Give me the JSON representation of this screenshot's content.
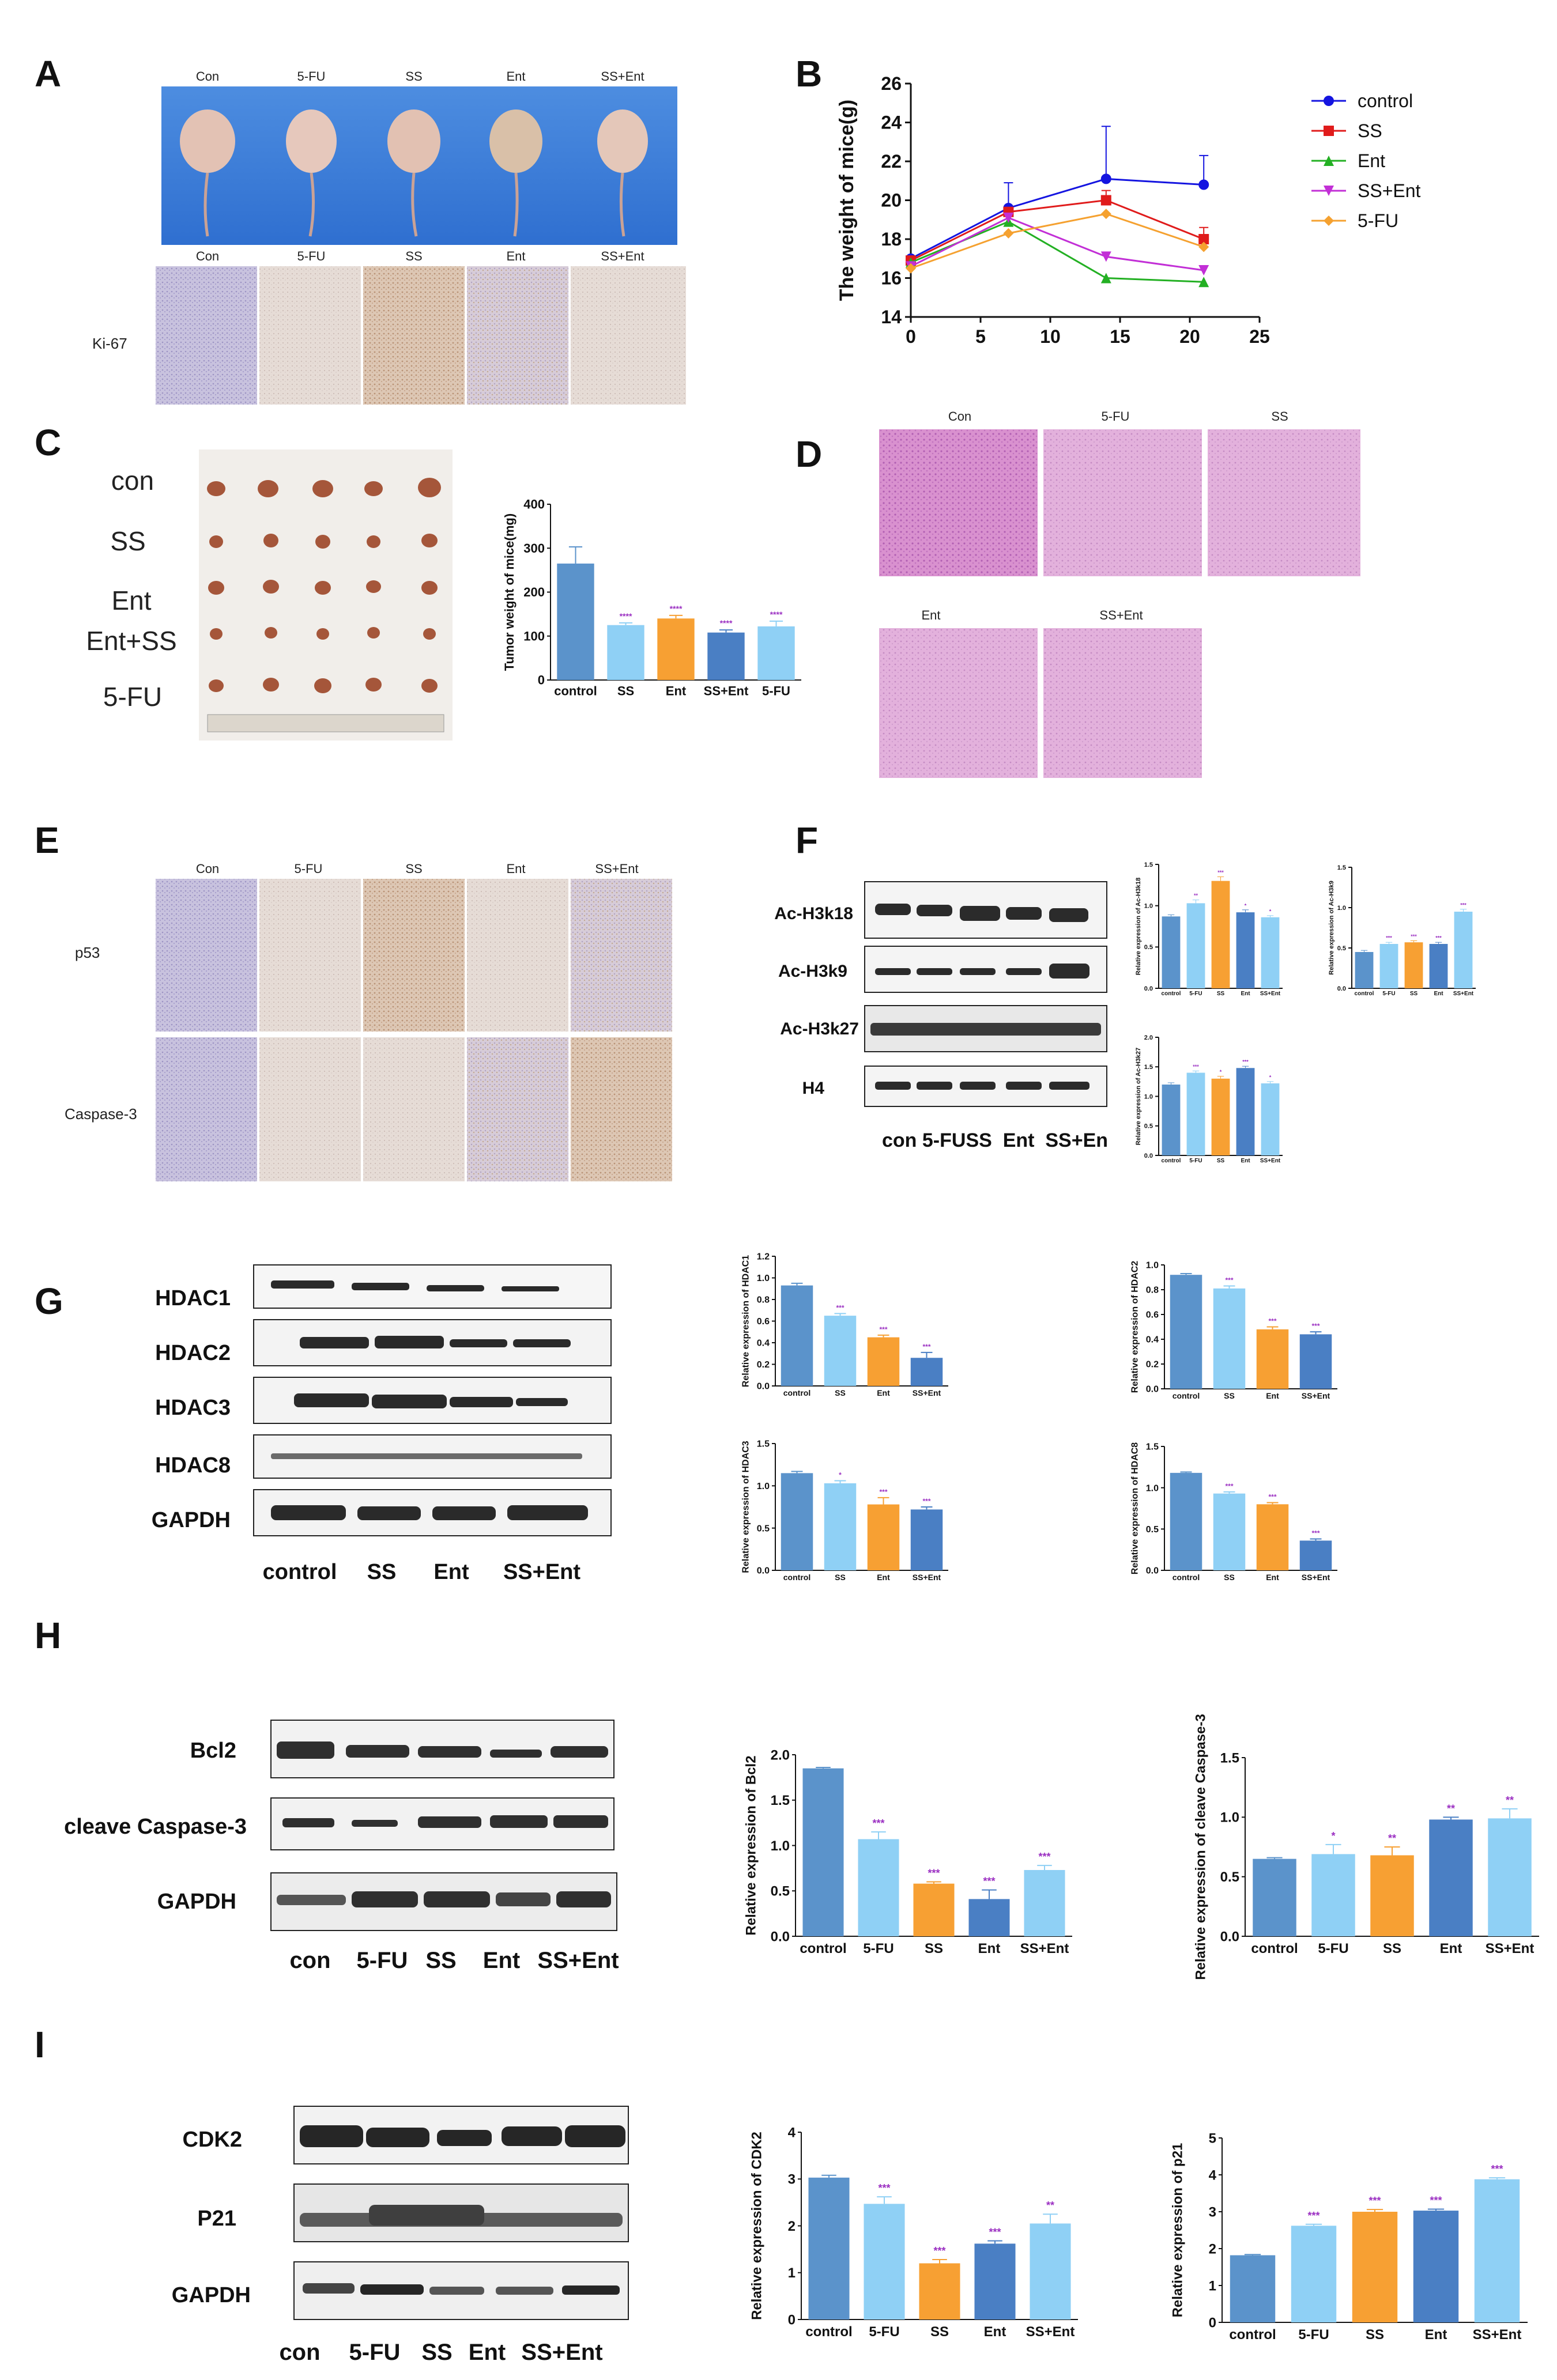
{
  "colors": {
    "control": "#5b93cb",
    "ss": "#8fd0f5",
    "ent": "#f7a033",
    "ssent": "#4a7fc4",
    "sig": "#9b30c2",
    "lineControl": "#1414e0",
    "lineSS": "#e01b1b",
    "lineEnt": "#23b023",
    "lineSSEnt": "#c22fd6",
    "line5FU": "#f5a130"
  },
  "panels": {
    "A": {
      "letter": "A",
      "mouse_labels": [
        "Con",
        "5-FU",
        "SS",
        "Ent",
        "SS+Ent"
      ],
      "ihc_labels": [
        "Con",
        "5-FU",
        "SS",
        "Ent",
        "SS+Ent"
      ],
      "row_label": "Ki-67"
    },
    "B": {
      "letter": "B"
    },
    "C": {
      "letter": "C",
      "row_labels": [
        "con",
        "SS",
        "Ent",
        "Ent+SS",
        "5-FU"
      ]
    },
    "D": {
      "letter": "D",
      "labels_top": [
        "Con",
        "5-FU",
        "SS"
      ],
      "labels_bottom": [
        "Ent",
        "SS+Ent"
      ]
    },
    "E": {
      "letter": "E",
      "col_labels": [
        "Con",
        "5-FU",
        "SS",
        "Ent",
        "SS+Ent"
      ],
      "row_labels": [
        "p53",
        "Caspase-3"
      ]
    },
    "F": {
      "letter": "F",
      "blot_labels": [
        "Ac-H3k18",
        "Ac-H3k9",
        "Ac-H3k27",
        "H4"
      ],
      "lane_labels": "con 5-FUSS  Ent  SS+En"
    },
    "G": {
      "letter": "G",
      "blot_labels": [
        "HDAC1",
        "HDAC2",
        "HDAC3",
        "HDAC8",
        "GAPDH"
      ],
      "lane_labels": [
        "control",
        "SS",
        "Ent",
        "SS+Ent"
      ]
    },
    "H": {
      "letter": "H",
      "blot_labels": [
        "Bcl2",
        "cleave Caspase-3",
        "GAPDH"
      ],
      "lane_labels": [
        "con",
        "5-FU",
        "SS",
        "Ent",
        "SS+Ent"
      ]
    },
    "I": {
      "letter": "I",
      "blot_labels": [
        "CDK2",
        "P21",
        "GAPDH"
      ],
      "lane_labels": [
        "con",
        "5-FU",
        "SS",
        "Ent",
        "SS+Ent"
      ]
    }
  },
  "chart_data": [
    {
      "id": "B",
      "type": "line",
      "ylabel": "The weight of mice(g)",
      "xlabel": "",
      "x": [
        0,
        7,
        14,
        21
      ],
      "xlim": [
        0,
        25
      ],
      "ylim": [
        14,
        26
      ],
      "xticks": [
        0,
        5,
        10,
        15,
        20,
        25
      ],
      "yticks": [
        14,
        16,
        18,
        20,
        22,
        24,
        26
      ],
      "legend_position": "right",
      "series": [
        {
          "name": "control",
          "values": [
            17.0,
            19.6,
            21.1,
            20.8
          ],
          "err": [
            0,
            1.3,
            2.7,
            1.5
          ]
        },
        {
          "name": "SS",
          "values": [
            16.9,
            19.4,
            20.0,
            18.0
          ],
          "err": [
            0,
            0,
            0.5,
            0.6
          ]
        },
        {
          "name": "Ent",
          "values": [
            16.8,
            18.9,
            16.0,
            15.8
          ],
          "err": [
            0,
            0,
            0,
            0
          ]
        },
        {
          "name": "SS+Ent",
          "values": [
            16.6,
            19.1,
            17.1,
            16.4
          ],
          "err": [
            0,
            0,
            0,
            0
          ]
        },
        {
          "name": "5-FU",
          "values": [
            16.5,
            18.3,
            19.3,
            17.6
          ],
          "err": [
            0,
            0,
            0,
            0
          ]
        }
      ]
    },
    {
      "id": "C",
      "type": "bar",
      "ylabel": "Tumor weight of mice(mg)",
      "categories": [
        "control",
        "SS",
        "Ent",
        "SS+Ent",
        "5-FU"
      ],
      "values": [
        265,
        125,
        140,
        108,
        122
      ],
      "err": [
        38,
        5,
        7,
        6,
        12
      ],
      "sig": [
        "",
        "****",
        "****",
        "****",
        "****"
      ],
      "colors": [
        "#5b93cb",
        "#8fd0f5",
        "#f7a033",
        "#4a7fc4",
        "#8fd0f5"
      ],
      "ylim": [
        0,
        400
      ],
      "yticks": [
        0,
        100,
        200,
        300,
        400
      ]
    },
    {
      "id": "F1",
      "type": "bar",
      "ylabel": "Relative expression of Ac-H3k18",
      "categories": [
        "control",
        "5-FU",
        "SS",
        "Ent",
        "SS+Ent"
      ],
      "values": [
        0.87,
        1.03,
        1.3,
        0.92,
        0.86
      ],
      "err": [
        0.02,
        0.04,
        0.05,
        0.03,
        0.02
      ],
      "sig": [
        "",
        "**",
        "***",
        "*",
        "*"
      ],
      "colors": [
        "#5b93cb",
        "#8fd0f5",
        "#f7a033",
        "#4a7fc4",
        "#8fd0f5"
      ],
      "ylim": [
        0,
        1.5
      ],
      "yticks": [
        0,
        0.5,
        1.0,
        1.5
      ]
    },
    {
      "id": "F2",
      "type": "bar",
      "ylabel": "Relative expression of Ac-H3k9",
      "categories": [
        "control",
        "5-FU",
        "SS",
        "Ent",
        "SS+Ent"
      ],
      "values": [
        0.45,
        0.55,
        0.57,
        0.55,
        0.95
      ],
      "err": [
        0.02,
        0.02,
        0.02,
        0.02,
        0.03
      ],
      "sig": [
        "",
        "***",
        "***",
        "***",
        "***"
      ],
      "colors": [
        "#5b93cb",
        "#8fd0f5",
        "#f7a033",
        "#4a7fc4",
        "#8fd0f5"
      ],
      "ylim": [
        0,
        1.5
      ],
      "yticks": [
        0,
        0.5,
        1.0,
        1.5
      ]
    },
    {
      "id": "F3",
      "type": "bar",
      "ylabel": "Relative expression of Ac-H3k27",
      "categories": [
        "control",
        "5-FU",
        "SS",
        "Ent",
        "SS+Ent"
      ],
      "values": [
        1.2,
        1.4,
        1.3,
        1.48,
        1.22
      ],
      "err": [
        0.03,
        0.03,
        0.04,
        0.03,
        0.03
      ],
      "sig": [
        "",
        "***",
        "*",
        "***",
        "*"
      ],
      "colors": [
        "#5b93cb",
        "#8fd0f5",
        "#f7a033",
        "#4a7fc4",
        "#8fd0f5"
      ],
      "ylim": [
        0,
        2.0
      ],
      "yticks": [
        0,
        0.5,
        1.0,
        1.5,
        2.0
      ]
    },
    {
      "id": "G1",
      "type": "bar",
      "ylabel": "Relative expression of HDAC1",
      "categories": [
        "control",
        "SS",
        "Ent",
        "SS+Ent"
      ],
      "values": [
        0.93,
        0.65,
        0.45,
        0.26
      ],
      "err": [
        0.02,
        0.02,
        0.02,
        0.05
      ],
      "sig": [
        "",
        "***",
        "***",
        "***"
      ],
      "colors": [
        "#5b93cb",
        "#8fd0f5",
        "#f7a033",
        "#4a7fc4"
      ],
      "ylim": [
        0,
        1.2
      ],
      "yticks": [
        0,
        0.2,
        0.4,
        0.6,
        0.8,
        1.0,
        1.2
      ]
    },
    {
      "id": "G2",
      "type": "bar",
      "ylabel": "Relative expression of HDAC2",
      "categories": [
        "control",
        "SS",
        "Ent",
        "SS+Ent"
      ],
      "values": [
        0.92,
        0.81,
        0.48,
        0.44
      ],
      "err": [
        0.01,
        0.02,
        0.02,
        0.02
      ],
      "sig": [
        "",
        "***",
        "***",
        "***"
      ],
      "colors": [
        "#5b93cb",
        "#8fd0f5",
        "#f7a033",
        "#4a7fc4"
      ],
      "ylim": [
        0,
        1.0
      ],
      "yticks": [
        0,
        0.2,
        0.4,
        0.6,
        0.8,
        1.0
      ]
    },
    {
      "id": "G3",
      "type": "bar",
      "ylabel": "Relative expression of HDAC3",
      "categories": [
        "control",
        "SS",
        "Ent",
        "SS+Ent"
      ],
      "values": [
        1.15,
        1.03,
        0.78,
        0.72
      ],
      "err": [
        0.02,
        0.03,
        0.08,
        0.03
      ],
      "sig": [
        "",
        "*",
        "***",
        "***"
      ],
      "colors": [
        "#5b93cb",
        "#8fd0f5",
        "#f7a033",
        "#4a7fc4"
      ],
      "ylim": [
        0,
        1.5
      ],
      "yticks": [
        0,
        0.5,
        1.0,
        1.5
      ]
    },
    {
      "id": "G4",
      "type": "bar",
      "ylabel": "Relative expression of HDAC8",
      "categories": [
        "control",
        "SS",
        "Ent",
        "SS+Ent"
      ],
      "values": [
        1.18,
        0.93,
        0.8,
        0.36
      ],
      "err": [
        0.01,
        0.02,
        0.02,
        0.02
      ],
      "sig": [
        "",
        "***",
        "***",
        "***"
      ],
      "colors": [
        "#5b93cb",
        "#8fd0f5",
        "#f7a033",
        "#4a7fc4"
      ],
      "ylim": [
        0,
        1.5
      ],
      "yticks": [
        0,
        0.5,
        1.0,
        1.5
      ]
    },
    {
      "id": "H1",
      "type": "bar",
      "ylabel": "Relative expression of Bcl2",
      "categories": [
        "control",
        "5-FU",
        "SS",
        "Ent",
        "SS+Ent"
      ],
      "values": [
        1.85,
        1.07,
        0.58,
        0.41,
        0.73
      ],
      "err": [
        0.01,
        0.08,
        0.02,
        0.1,
        0.05
      ],
      "sig": [
        "",
        "***",
        "***",
        "***",
        "***"
      ],
      "colors": [
        "#5b93cb",
        "#8fd0f5",
        "#f7a033",
        "#4a7fc4",
        "#8fd0f5"
      ],
      "ylim": [
        0,
        2.0
      ],
      "yticks": [
        0,
        0.5,
        1.0,
        1.5,
        2.0
      ]
    },
    {
      "id": "H2",
      "type": "bar",
      "ylabel": "Relative expression of cleave Caspase-3",
      "categories": [
        "control",
        "5-FU",
        "SS",
        "Ent",
        "SS+Ent"
      ],
      "values": [
        0.65,
        0.69,
        0.68,
        0.98,
        0.99
      ],
      "err": [
        0.01,
        0.08,
        0.07,
        0.02,
        0.08
      ],
      "sig": [
        "",
        "*",
        "**",
        "**",
        "**"
      ],
      "colors": [
        "#5b93cb",
        "#8fd0f5",
        "#f7a033",
        "#4a7fc4",
        "#8fd0f5"
      ],
      "ylim": [
        0,
        1.5
      ],
      "yticks": [
        0.0,
        0.5,
        1.0,
        1.5
      ]
    },
    {
      "id": "I1",
      "type": "bar",
      "ylabel": "Relative expression of CDK2",
      "categories": [
        "control",
        "5-FU",
        "SS",
        "Ent",
        "SS+Ent"
      ],
      "values": [
        3.03,
        2.47,
        1.2,
        1.62,
        2.05
      ],
      "err": [
        0.05,
        0.15,
        0.08,
        0.06,
        0.2
      ],
      "sig": [
        "",
        "***",
        "***",
        "***",
        "**"
      ],
      "colors": [
        "#5b93cb",
        "#8fd0f5",
        "#f7a033",
        "#4a7fc4",
        "#8fd0f5"
      ],
      "ylim": [
        0,
        4
      ],
      "yticks": [
        0,
        1,
        2,
        3,
        4
      ]
    },
    {
      "id": "I2",
      "type": "bar",
      "ylabel": "Relative expression of p21",
      "categories": [
        "control",
        "5-FU",
        "SS",
        "Ent",
        "SS+Ent"
      ],
      "values": [
        1.82,
        2.62,
        3.0,
        3.03,
        3.88
      ],
      "err": [
        0.02,
        0.04,
        0.06,
        0.04,
        0.04
      ],
      "sig": [
        "",
        "***",
        "***",
        "***",
        "***"
      ],
      "colors": [
        "#5b93cb",
        "#8fd0f5",
        "#f7a033",
        "#4a7fc4",
        "#8fd0f5"
      ],
      "ylim": [
        0,
        5
      ],
      "yticks": [
        0,
        1,
        2,
        3,
        4,
        5
      ]
    }
  ]
}
